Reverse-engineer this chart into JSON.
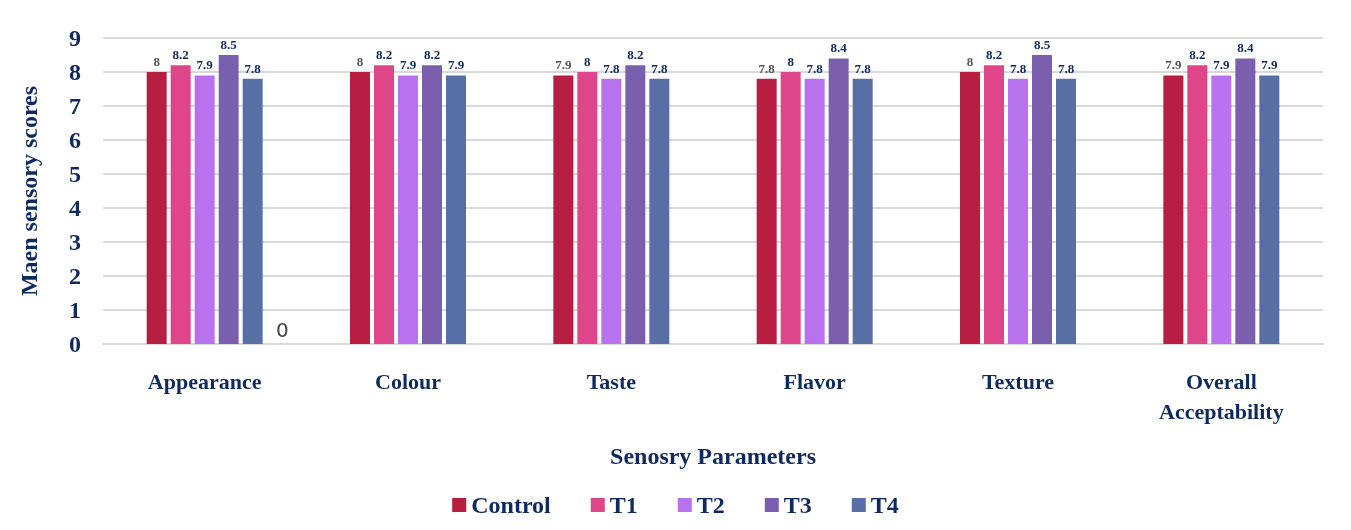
{
  "chart_data": {
    "type": "bar",
    "xlabel": "Senosry Parameters",
    "ylabel": "Maen sensory scores",
    "categories": [
      "Appearance",
      "Colour",
      "Taste",
      "Flavor",
      "Texture",
      "Overall\nAcceptability"
    ],
    "series": [
      {
        "name": "Control",
        "color": "#b81e42",
        "values": [
          8,
          8,
          7.9,
          7.8,
          8,
          7.9
        ]
      },
      {
        "name": "T1",
        "color": "#df468a",
        "values": [
          8.2,
          8.2,
          8,
          8,
          8.2,
          8.2
        ]
      },
      {
        "name": "T2",
        "color": "#b972ee",
        "values": [
          7.9,
          7.9,
          7.8,
          7.8,
          7.8,
          7.9
        ]
      },
      {
        "name": "T3",
        "color": "#7a5fae",
        "values": [
          8.5,
          8.2,
          8.2,
          8.4,
          8.5,
          8.4
        ]
      },
      {
        "name": "T4",
        "color": "#586fa6",
        "values": [
          7.8,
          7.9,
          7.8,
          7.8,
          7.8,
          7.9
        ]
      }
    ],
    "ylim": [
      0,
      9
    ],
    "yticks": [
      0,
      1,
      2,
      3,
      4,
      5,
      6,
      7,
      8,
      9
    ],
    "grid": "y",
    "legend": "bottom",
    "data_labels": true,
    "annotations": [
      "0"
    ]
  }
}
